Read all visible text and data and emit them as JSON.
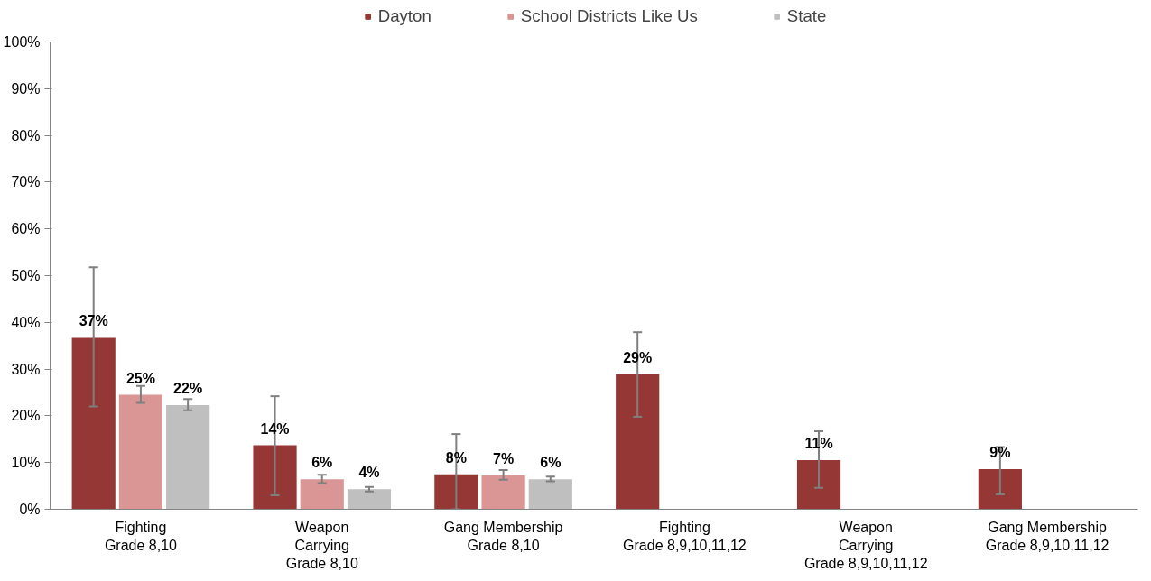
{
  "chart_data": {
    "type": "bar",
    "categories": [
      "Fighting\nGrade 8,10",
      "Weapon\nCarrying\nGrade 8,10",
      "Gang Membership\nGrade 8,10",
      "Fighting\nGrade 8,9,10,11,12",
      "Weapon\nCarrying\nGrade 8,9,10,11,12",
      "Gang Membership\nGrade 8,9,10,11,12"
    ],
    "series": [
      {
        "name": "Dayton",
        "color": "#953735",
        "values": [
          36.7,
          13.7,
          7.5,
          28.9,
          10.5,
          8.6
        ],
        "errors": [
          [
            22,
            51.8
          ],
          [
            3,
            24.2
          ],
          [
            0,
            16.1
          ],
          [
            19.8,
            37.9
          ],
          [
            4.6,
            16.7
          ],
          [
            3.2,
            13.3
          ]
        ],
        "value_labels": [
          "37%",
          "14%",
          "8%",
          "29%",
          "11%",
          "9%"
        ]
      },
      {
        "name": "School Districts Like Us",
        "color": "#d99694",
        "values": [
          24.5,
          6.4,
          7.3,
          null,
          null,
          null
        ],
        "errors": [
          [
            22.8,
            26.4
          ],
          [
            5.6,
            7.4
          ],
          [
            6.3,
            8.4
          ],
          null,
          null,
          null
        ],
        "value_labels": [
          "25%",
          "6%",
          "7%",
          null,
          null,
          null
        ]
      },
      {
        "name": "State",
        "color": "#bfbfbf",
        "values": [
          22.3,
          4.3,
          6.4,
          null,
          null,
          null
        ],
        "errors": [
          [
            21.2,
            23.6
          ],
          [
            3.8,
            4.8
          ],
          [
            6,
            7
          ],
          null,
          null,
          null
        ],
        "value_labels": [
          "22%",
          "4%",
          "6%",
          null,
          null,
          null
        ]
      }
    ],
    "ylim": [
      0,
      100
    ],
    "yticks": [
      {
        "value": 0,
        "label": "0%"
      },
      {
        "value": 10,
        "label": "10%"
      },
      {
        "value": 20,
        "label": "20%"
      },
      {
        "value": 30,
        "label": "30%"
      },
      {
        "value": 40,
        "label": "40%"
      },
      {
        "value": 50,
        "label": "50%"
      },
      {
        "value": 60,
        "label": "60%"
      },
      {
        "value": 70,
        "label": "70%"
      },
      {
        "value": 80,
        "label": "80%"
      },
      {
        "value": 90,
        "label": "90%"
      },
      {
        "value": 100,
        "label": "100%"
      }
    ],
    "legend": "top",
    "grid": false
  }
}
